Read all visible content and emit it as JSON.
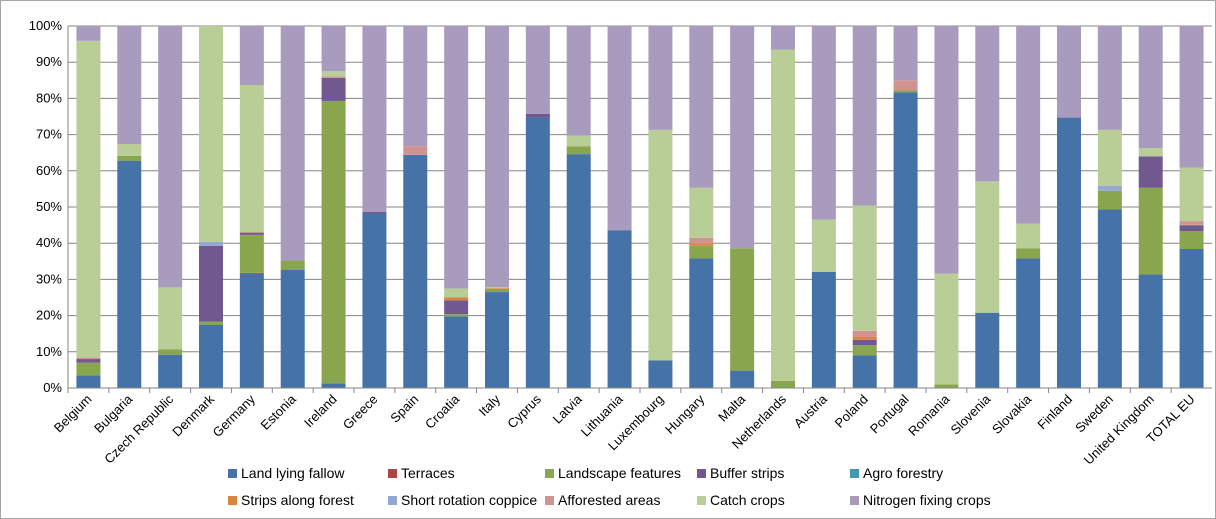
{
  "chart_data": {
    "type": "bar",
    "stacked": true,
    "ylim": [
      0,
      100
    ],
    "y_tick_format": "percent",
    "y_ticks": [
      0,
      10,
      20,
      30,
      40,
      50,
      60,
      70,
      80,
      90,
      100
    ],
    "y_tick_labels": [
      "0%",
      "10%",
      "20%",
      "30%",
      "40%",
      "50%",
      "60%",
      "70%",
      "80%",
      "90%",
      "100%"
    ],
    "grid": true,
    "legend_position": "bottom",
    "categories": [
      "Belgium",
      "Bulgaria",
      "Czech Republic",
      "Denmark",
      "Germany",
      "Estonia",
      "Ireland",
      "Greece",
      "Spain",
      "Croatia",
      "Italy",
      "Cyprus",
      "Latvia",
      "Lithuania",
      "Luxembourg",
      "Hungary",
      "Malta",
      "Netherlands",
      "Austria",
      "Poland",
      "Portugal",
      "Romania",
      "Slovenia",
      "Slovakia",
      "Finland",
      "Sweden",
      "United Kingdom",
      "TOTAL EU"
    ],
    "series": [
      {
        "name": "Land lying fallow",
        "color": "#4572a7",
        "values": [
          3.5,
          62.8,
          9.2,
          17.5,
          31.6,
          32.6,
          1.3,
          48.2,
          64.4,
          19.8,
          26.5,
          74.7,
          64.6,
          43.6,
          7.6,
          35.8,
          4.8,
          0,
          32.1,
          9.0,
          81.7,
          0,
          20.8,
          35.8,
          74.7,
          49.3,
          31.4,
          38.4
        ]
      },
      {
        "name": "Terraces",
        "color": "#aa4643",
        "values": [
          0,
          0,
          0,
          0,
          0.2,
          0,
          0,
          0,
          0,
          0,
          0,
          0,
          0,
          0,
          0,
          0,
          0,
          0,
          0,
          0,
          0,
          0,
          0,
          0,
          0,
          0,
          0,
          0
        ]
      },
      {
        "name": "Landscape features",
        "color": "#89a54e",
        "values": [
          3.5,
          1.3,
          1.5,
          0.8,
          10.5,
          2.6,
          78.0,
          0,
          0,
          0.6,
          0.9,
          0,
          2.2,
          0,
          0,
          3.5,
          33.8,
          2.0,
          0,
          2.8,
          0.5,
          1.0,
          0,
          2.8,
          0,
          5.2,
          23.9,
          4.9
        ]
      },
      {
        "name": "Buffer strips",
        "color": "#71588f",
        "values": [
          1.0,
          0,
          0,
          21.0,
          0.6,
          0,
          6.4,
          0.5,
          0,
          3.8,
          0,
          1.0,
          0,
          0,
          0,
          0,
          0,
          0,
          0,
          1.5,
          0,
          0,
          0,
          0,
          0,
          0,
          8.7,
          1.6
        ]
      },
      {
        "name": "Agro forestry",
        "color": "#4198af",
        "values": [
          0,
          0,
          0,
          0,
          0,
          0,
          0,
          0,
          0,
          0,
          0,
          0,
          0,
          0,
          0,
          0,
          0,
          0,
          0,
          0,
          0,
          0,
          0,
          0,
          0,
          0,
          0,
          0.1
        ]
      },
      {
        "name": "Strips along forest",
        "color": "#db843d",
        "values": [
          0,
          0,
          0,
          0,
          0,
          0,
          0,
          0,
          0,
          0.8,
          0.2,
          0,
          0,
          0,
          0,
          0.6,
          0,
          0,
          0,
          0.9,
          0,
          0,
          0,
          0,
          0,
          0,
          0,
          0.1
        ]
      },
      {
        "name": "Short rotation coppice",
        "color": "#93a9cf",
        "values": [
          0,
          0,
          0,
          1.1,
          0,
          0,
          0,
          0,
          0,
          0,
          0,
          0,
          0,
          0,
          0,
          0,
          0,
          0,
          0,
          0,
          0,
          0,
          0,
          0,
          0,
          1.4,
          0,
          0
        ]
      },
      {
        "name": "Afforested areas",
        "color": "#d19392",
        "values": [
          0.4,
          0,
          0,
          0,
          0.2,
          0,
          0.4,
          0,
          2.4,
          0,
          0,
          0,
          0,
          0,
          0,
          1.6,
          0,
          0,
          0,
          1.6,
          2.8,
          0,
          0,
          0,
          0,
          0,
          0,
          1.0
        ]
      },
      {
        "name": "Catch crops",
        "color": "#b9cd96",
        "values": [
          87.5,
          3.3,
          17.1,
          59.6,
          40.6,
          0,
          1.4,
          0,
          0,
          2.5,
          0.3,
          0,
          2.9,
          0,
          63.7,
          13.8,
          0,
          91.5,
          14.4,
          34.6,
          0,
          30.6,
          36.3,
          6.8,
          0,
          15.4,
          2.3,
          14.8
        ]
      },
      {
        "name": "Nitrogen fixing crops",
        "color": "#a99bbd",
        "values": [
          3.9,
          32.6,
          72.2,
          0,
          16.3,
          64.8,
          12.5,
          51.3,
          33.2,
          72.5,
          72.1,
          24.3,
          30.3,
          56.4,
          28.7,
          44.7,
          61.4,
          6.5,
          53.5,
          49.6,
          15.0,
          68.4,
          42.9,
          54.6,
          25.3,
          28.7,
          33.7,
          39.1
        ]
      }
    ]
  }
}
